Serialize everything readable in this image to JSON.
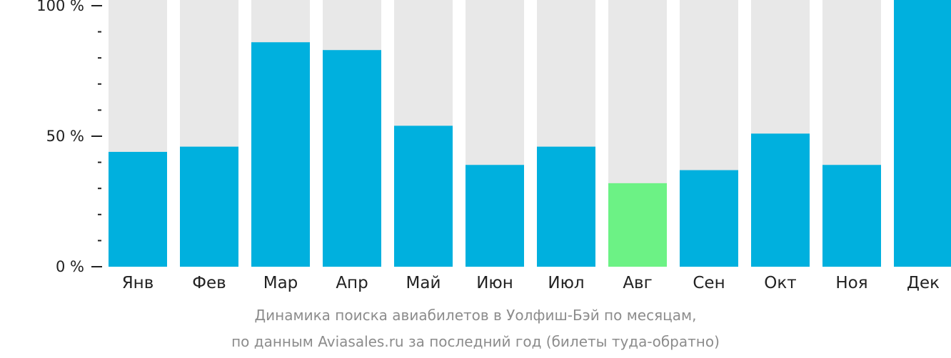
{
  "chart_data": {
    "type": "bar",
    "categories": [
      "Янв",
      "Фев",
      "Мар",
      "Апр",
      "Май",
      "Июн",
      "Июл",
      "Авг",
      "Сен",
      "Окт",
      "Ноя",
      "Дек"
    ],
    "values": [
      44,
      46,
      86,
      83,
      54,
      39,
      46,
      32,
      37,
      51,
      39,
      100
    ],
    "highlight_index": 7,
    "ylim": [
      0,
      100
    ],
    "yticks": [
      {
        "value": 0,
        "label": "0 %"
      },
      {
        "value": 50,
        "label": "50 %"
      },
      {
        "value": 100,
        "label": "100 %"
      }
    ],
    "minor_tick_step": 10,
    "colors": {
      "bar": "#00b0de",
      "highlight": "#6cf285",
      "track": "#e8e8e8",
      "axis": "#222222"
    },
    "caption_line1": "Динамика поиска авиабилетов в Уолфиш-Бэй по месяцам,",
    "caption_line2": "по данным Aviasales.ru за последний год (билеты туда-обратно)"
  }
}
